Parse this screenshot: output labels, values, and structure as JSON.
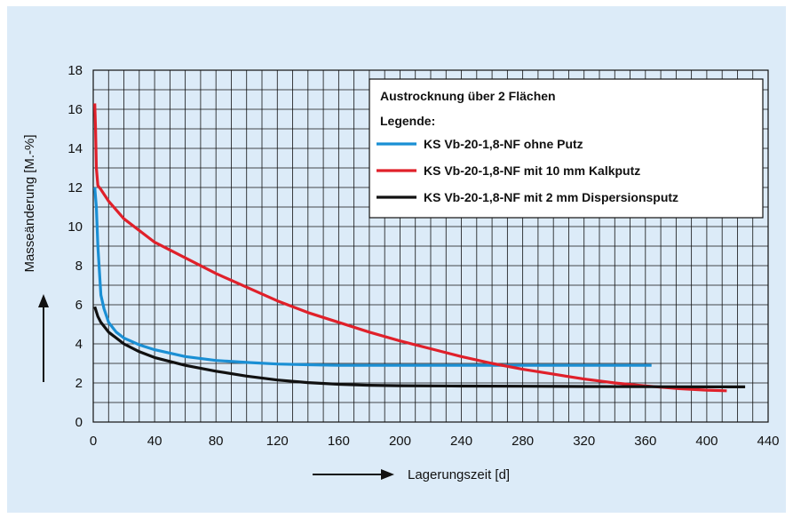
{
  "chart_data": {
    "type": "line",
    "title": "Austrocknung über 2 Flächen",
    "legend_title": "Legende:",
    "xlabel": "Lagerungszeit [d]",
    "ylabel": "Masseänderung [M.-%]",
    "xlim": [
      0,
      440
    ],
    "ylim": [
      0,
      18
    ],
    "x_ticks": [
      0,
      40,
      80,
      120,
      160,
      200,
      240,
      280,
      320,
      360,
      400,
      440
    ],
    "y_ticks": [
      0,
      2,
      4,
      6,
      8,
      10,
      12,
      14,
      16,
      18
    ],
    "grid": true,
    "legend_position": "top-right",
    "series": [
      {
        "name": "KS Vb-20-1,8-NF ohne Putz",
        "color": "#1a8fd4",
        "x": [
          1,
          2,
          3,
          5,
          7,
          10,
          15,
          20,
          30,
          40,
          60,
          80,
          100,
          120,
          140,
          160,
          200,
          240,
          280,
          320,
          364
        ],
        "y": [
          12,
          11,
          9,
          6.5,
          5.8,
          5.1,
          4.6,
          4.3,
          3.95,
          3.7,
          3.35,
          3.15,
          3.05,
          2.97,
          2.93,
          2.9,
          2.9,
          2.9,
          2.9,
          2.9,
          2.9
        ]
      },
      {
        "name": "KS Vb-20-1,8-NF mit 10 mm Kalkputz",
        "color": "#e0202a",
        "x": [
          1,
          1.5,
          2,
          3,
          5,
          10,
          20,
          40,
          60,
          80,
          100,
          120,
          140,
          160,
          180,
          200,
          220,
          240,
          260,
          280,
          300,
          320,
          340,
          360,
          380,
          400,
          413
        ],
        "y": [
          16.3,
          15,
          13,
          12.1,
          11.9,
          11.3,
          10.4,
          9.2,
          8.4,
          7.6,
          6.9,
          6.2,
          5.6,
          5.1,
          4.6,
          4.15,
          3.75,
          3.35,
          3.0,
          2.7,
          2.45,
          2.2,
          2.0,
          1.85,
          1.72,
          1.63,
          1.6
        ]
      },
      {
        "name": "KS Vb-20-1,8-NF mit 2 mm Dispersionsputz",
        "color": "#111111",
        "x": [
          1,
          3,
          5,
          10,
          15,
          20,
          30,
          40,
          60,
          80,
          100,
          120,
          140,
          160,
          180,
          200,
          240,
          280,
          320,
          360,
          400,
          425
        ],
        "y": [
          5.9,
          5.4,
          5.1,
          4.6,
          4.3,
          4.0,
          3.6,
          3.3,
          2.9,
          2.6,
          2.35,
          2.15,
          2.02,
          1.93,
          1.88,
          1.86,
          1.84,
          1.83,
          1.82,
          1.81,
          1.8,
          1.8
        ]
      }
    ]
  }
}
